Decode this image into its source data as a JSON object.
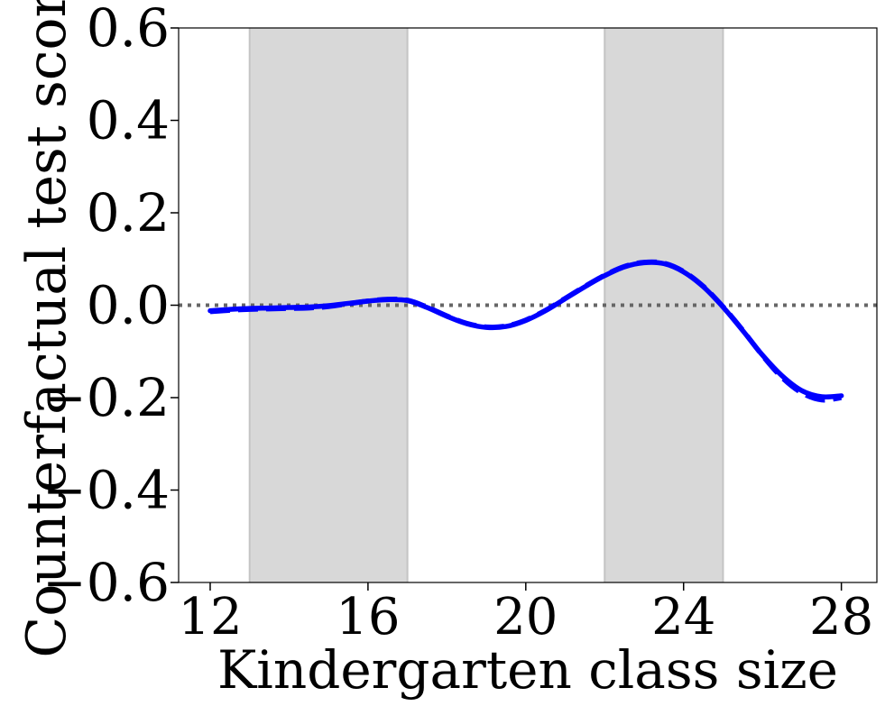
{
  "chart_data": {
    "type": "line",
    "title": "",
    "xlabel": "Kindergarten class size",
    "ylabel": "Counterfactual test score",
    "xlim": [
      11.2,
      28.9
    ],
    "ylim": [
      -0.6,
      0.6
    ],
    "xticks": [
      12,
      16,
      20,
      24,
      28
    ],
    "xtick_labels": [
      "12",
      "16",
      "20",
      "24",
      "28"
    ],
    "yticks": [
      -0.6,
      -0.4,
      -0.2,
      0.0,
      0.2,
      0.4,
      0.6
    ],
    "ytick_labels": [
      "−0.6",
      "−0.4",
      "−0.2",
      "0.0",
      "0.2",
      "0.4",
      "0.6"
    ],
    "grid": false,
    "shaded_regions": [
      {
        "x_start": 13,
        "x_end": 17
      },
      {
        "x_start": 22,
        "x_end": 25
      }
    ],
    "reference_line": {
      "y": 0.0,
      "style": "dotted",
      "color": "#666666"
    },
    "series": [
      {
        "style": "solid",
        "color": "#0000ff",
        "x": [
          12,
          12.5,
          13,
          13.5,
          14,
          14.5,
          15,
          15.5,
          16,
          16.5,
          17,
          17.5,
          18,
          18.5,
          19,
          19.5,
          20,
          20.5,
          21,
          21.5,
          22,
          22.5,
          23,
          23.5,
          24,
          24.5,
          25,
          25.5,
          26,
          26.5,
          27,
          27.5,
          28
        ],
        "y": [
          -0.012,
          -0.009,
          -0.007,
          -0.006,
          -0.005,
          -0.004,
          -0.001,
          0.004,
          0.009,
          0.012,
          0.01,
          -0.005,
          -0.024,
          -0.04,
          -0.048,
          -0.046,
          -0.033,
          -0.012,
          0.014,
          0.04,
          0.064,
          0.083,
          0.092,
          0.09,
          0.072,
          0.04,
          -0.004,
          -0.055,
          -0.108,
          -0.153,
          -0.185,
          -0.198,
          -0.196
        ]
      },
      {
        "style": "dashed",
        "color": "#0000ff",
        "x": [
          12,
          12.5,
          13,
          13.5,
          14,
          14.5,
          15,
          15.5,
          16,
          16.5,
          17,
          17.5,
          18,
          18.5,
          19,
          19.5,
          20,
          20.5,
          21,
          21.5,
          22,
          22.5,
          23,
          23.5,
          24,
          24.5,
          25,
          25.5,
          26,
          26.5,
          27,
          27.5,
          28
        ],
        "y": [
          -0.014,
          -0.011,
          -0.009,
          -0.008,
          -0.007,
          -0.006,
          -0.003,
          0.003,
          0.009,
          0.013,
          0.011,
          -0.004,
          -0.023,
          -0.039,
          -0.047,
          -0.045,
          -0.032,
          -0.011,
          0.015,
          0.041,
          0.065,
          0.084,
          0.093,
          0.091,
          0.073,
          0.041,
          -0.003,
          -0.054,
          -0.109,
          -0.157,
          -0.19,
          -0.205,
          -0.2
        ]
      }
    ]
  }
}
